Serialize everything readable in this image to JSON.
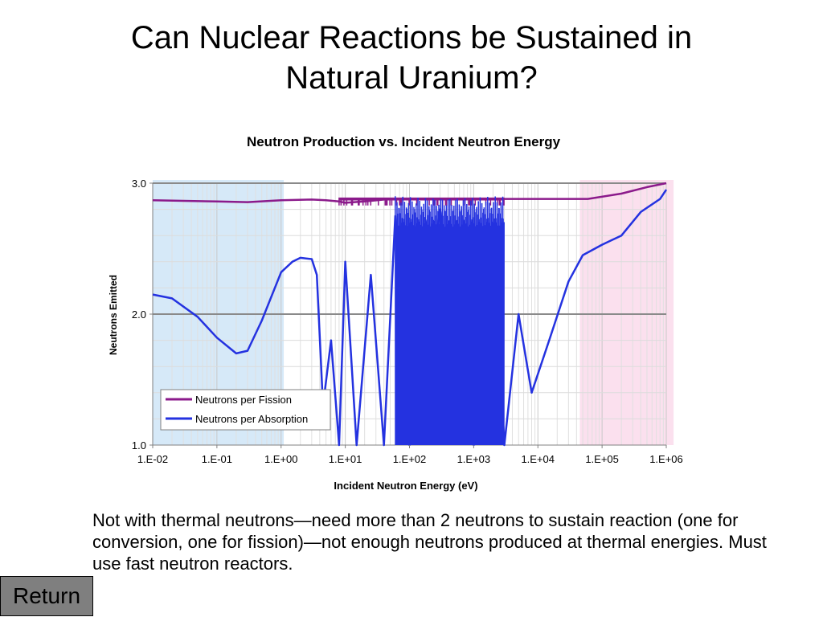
{
  "slide": {
    "title_line1": "Can Nuclear Reactions be Sustained in",
    "title_line2": "Natural Uranium?",
    "body": "Not with thermal neutrons—need more than 2 neutrons to sustain reaction (one for conversion, one for fission)—not enough neutrons produced at thermal energies.  Must use fast neutron reactors.",
    "return_label": "Return"
  },
  "chart_data": {
    "type": "line",
    "title": "Neutron Production vs. Incident Neutron Energy",
    "xlabel": "Incident Neutron Energy (eV)",
    "ylabel": "Neutrons Emitted",
    "x_scale": "log",
    "xlim": [
      0.01,
      1000000
    ],
    "ylim": [
      1.0,
      3.0
    ],
    "x_ticks": [
      "1.E-02",
      "1.E-01",
      "1.E+00",
      "1.E+01",
      "1.E+02",
      "1.E+03",
      "1.E+04",
      "1.E+05",
      "1.E+06"
    ],
    "y_ticks": [
      "1.0",
      "2.0",
      "3.0"
    ],
    "grid": true,
    "legend_position": "bottom-left",
    "shaded_regions": [
      {
        "x_range": [
          0.01,
          1.1
        ],
        "color": "#d6e9f8"
      },
      {
        "x_range": [
          45000,
          1300000
        ],
        "color": "#fbe0ee"
      }
    ],
    "series": [
      {
        "name": "Neutrons per Fission",
        "color": "#8b1a8b",
        "points": [
          [
            0.01,
            2.87
          ],
          [
            0.03,
            2.865
          ],
          [
            0.1,
            2.86
          ],
          [
            0.3,
            2.855
          ],
          [
            1.0,
            2.87
          ],
          [
            3.0,
            2.875
          ],
          [
            5.0,
            2.87
          ],
          [
            8.0,
            2.86
          ],
          [
            10.0,
            2.85
          ],
          [
            20.0,
            2.86
          ],
          [
            50.0,
            2.88
          ],
          [
            100.0,
            2.88
          ],
          [
            500.0,
            2.88
          ],
          [
            3000.0,
            2.88
          ],
          [
            10000.0,
            2.88
          ],
          [
            60000.0,
            2.88
          ],
          [
            200000.0,
            2.92
          ],
          [
            500000.0,
            2.97
          ],
          [
            1000000.0,
            3.0
          ]
        ]
      },
      {
        "name": "Neutrons per Absorption",
        "color": "#2432e0",
        "points": [
          [
            0.01,
            2.15
          ],
          [
            0.02,
            2.12
          ],
          [
            0.05,
            1.98
          ],
          [
            0.1,
            1.82
          ],
          [
            0.2,
            1.7
          ],
          [
            0.3,
            1.72
          ],
          [
            0.5,
            1.95
          ],
          [
            1.0,
            2.32
          ],
          [
            1.5,
            2.4
          ],
          [
            2.0,
            2.43
          ],
          [
            3.0,
            2.42
          ],
          [
            3.6,
            2.3
          ],
          [
            4.5,
            1.3
          ],
          [
            6.0,
            1.8
          ],
          [
            8.0,
            1.0
          ],
          [
            10.0,
            2.4
          ],
          [
            15.0,
            1.0
          ],
          [
            25.0,
            2.3
          ],
          [
            40.0,
            1.0
          ],
          [
            60.0,
            2.75
          ],
          [
            100.0,
            1.0
          ],
          [
            300.0,
            2.8
          ],
          [
            1000.0,
            1.0
          ],
          [
            2000.0,
            2.7
          ],
          [
            3000.0,
            1.0
          ],
          [
            5000.0,
            2.0
          ],
          [
            8000.0,
            1.4
          ],
          [
            15000.0,
            1.8
          ],
          [
            30000.0,
            2.25
          ],
          [
            50000.0,
            2.45
          ],
          [
            100000.0,
            2.53
          ],
          [
            200000.0,
            2.6
          ],
          [
            400000.0,
            2.78
          ],
          [
            800000.0,
            2.88
          ],
          [
            1000000.0,
            2.95
          ]
        ],
        "dense_oscillation": {
          "x_range": [
            60,
            3000
          ],
          "y_range": [
            1.0,
            2.9
          ]
        }
      }
    ]
  }
}
